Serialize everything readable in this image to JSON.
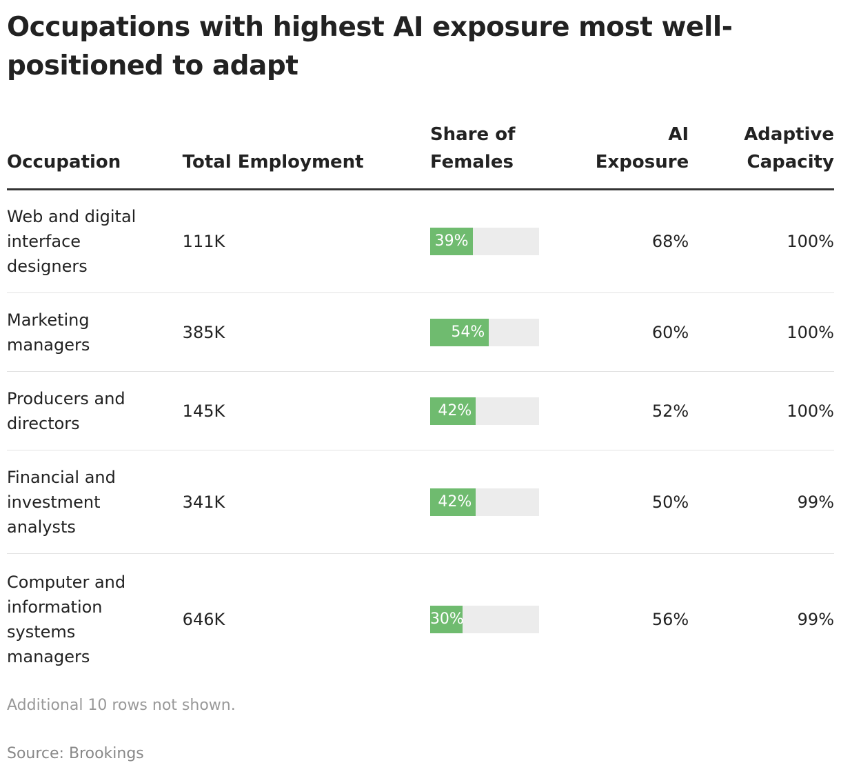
{
  "title": "Occupations with highest AI exposure most well-positioned to adapt",
  "chart_data": {
    "type": "table",
    "columns": [
      "Occupation",
      "Total Employment",
      "Share of Females",
      "AI Exposure",
      "Adaptive Capacity"
    ],
    "rows": [
      {
        "occupation": "Web and digital interface designers",
        "employment": "111K",
        "share_females": "39%",
        "share_value": 39,
        "ai_exposure": "68%",
        "adaptive": "100%"
      },
      {
        "occupation": "Marketing managers",
        "employment": "385K",
        "share_females": "54%",
        "share_value": 54,
        "ai_exposure": "60%",
        "adaptive": "100%"
      },
      {
        "occupation": "Producers and directors",
        "employment": "145K",
        "share_females": "42%",
        "share_value": 42,
        "ai_exposure": "52%",
        "adaptive": "100%"
      },
      {
        "occupation": "Financial and investment analysts",
        "employment": "341K",
        "share_females": "42%",
        "share_value": 42,
        "ai_exposure": "50%",
        "adaptive": "99%"
      },
      {
        "occupation": "Computer and information systems managers",
        "employment": "646K",
        "share_females": "30%",
        "share_value": 30,
        "ai_exposure": "56%",
        "adaptive": "99%"
      }
    ],
    "bar_color": "#6fbb6f",
    "bar_track_color": "#ececec"
  },
  "note": "Additional 10 rows not shown.",
  "source": "Source: Brookings"
}
